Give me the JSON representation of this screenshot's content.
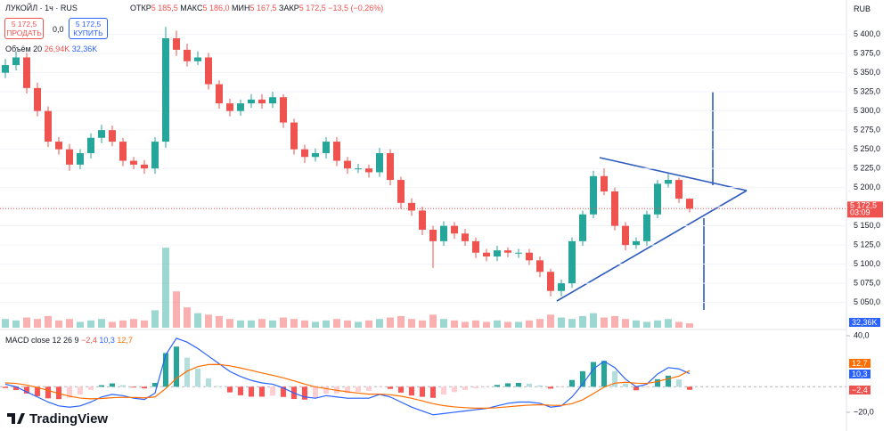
{
  "header": {
    "symbol": "ЛУКОЙЛ · 1ч · RUS",
    "open_label": "ОТКР",
    "open": "5 185,5",
    "high_label": "МАКС",
    "high": "5 186,0",
    "low_label": "МИН",
    "low": "5 167,5",
    "close_label": "ЗАКР",
    "close": "5 172,5",
    "change": "−13,5 (−0,26%)",
    "sell_price": "5 172,5",
    "sell_label": "ПРОДАТЬ",
    "spread": "0,0",
    "buy_price": "5 172,5",
    "buy_label": "КУПИТЬ",
    "currency": "RUB",
    "logo": "TradingView"
  },
  "chart_data": {
    "type": "candlestick",
    "open": [
      5350,
      5360,
      5370,
      5330,
      5300,
      5260,
      5250,
      5230,
      5245,
      5265,
      5275,
      5260,
      5235,
      5230,
      5225,
      5260,
      5395,
      5380,
      5365,
      5370,
      5335,
      5310,
      5300,
      5310,
      5315,
      5310,
      5318,
      5285,
      5250,
      5240,
      5245,
      5260,
      5235,
      5225,
      5225,
      5220,
      5245,
      5210,
      5180,
      5170,
      5145,
      5130,
      5150,
      5140,
      5130,
      5115,
      5110,
      5118,
      5115,
      5115,
      5105,
      5090,
      5065,
      5075,
      5130,
      5165,
      5215,
      5195,
      5150,
      5125,
      5130,
      5165,
      5205,
      5210,
      5185.5
    ],
    "high": [
      5368,
      5378,
      5376,
      5337,
      5306,
      5266,
      5257,
      5250,
      5271,
      5282,
      5281,
      5265,
      5240,
      5236,
      5266,
      5410,
      5405,
      5388,
      5378,
      5376,
      5340,
      5316,
      5315,
      5322,
      5322,
      5325,
      5322,
      5290,
      5256,
      5251,
      5266,
      5266,
      5240,
      5231,
      5230,
      5252,
      5250,
      5214,
      5186,
      5175,
      5150,
      5156,
      5155,
      5146,
      5135,
      5120,
      5124,
      5122,
      5120,
      5120,
      5110,
      5094,
      5080,
      5135,
      5170,
      5222,
      5225,
      5200,
      5155,
      5135,
      5170,
      5210,
      5218,
      5213,
      5186
    ],
    "low": [
      5343,
      5353,
      5323,
      5293,
      5253,
      5243,
      5222,
      5224,
      5238,
      5258,
      5254,
      5228,
      5224,
      5218,
      5218,
      5252,
      5372,
      5358,
      5360,
      5328,
      5303,
      5293,
      5294,
      5304,
      5303,
      5304,
      5278,
      5243,
      5232,
      5234,
      5238,
      5228,
      5218,
      5219,
      5213,
      5214,
      5203,
      5172,
      5163,
      5138,
      5095,
      5124,
      5133,
      5124,
      5108,
      5104,
      5104,
      5109,
      5108,
      5099,
      5083,
      5058,
      5058,
      5069,
      5124,
      5160,
      5190,
      5144,
      5118,
      5120,
      5124,
      5160,
      5200,
      5180,
      5167.5
    ],
    "close": [
      5360,
      5370,
      5330,
      5300,
      5260,
      5250,
      5230,
      5245,
      5265,
      5275,
      5260,
      5235,
      5230,
      5225,
      5260,
      5395,
      5380,
      5365,
      5370,
      5335,
      5310,
      5300,
      5310,
      5315,
      5310,
      5318,
      5285,
      5250,
      5240,
      5245,
      5260,
      5235,
      5225,
      5225,
      5220,
      5245,
      5210,
      5180,
      5170,
      5145,
      5130,
      5150,
      5140,
      5130,
      5115,
      5110,
      5118,
      5115,
      5115,
      5105,
      5090,
      5065,
      5075,
      5130,
      5165,
      5215,
      5195,
      5150,
      5125,
      5130,
      5165,
      5205,
      5210,
      5185.5,
      5172.5
    ],
    "up_color": "#26a69a",
    "down_color": "#ef5350",
    "ylim": [
      5017,
      5445
    ],
    "yticks": [
      {
        "value": 5050,
        "label": "5 050,0"
      },
      {
        "value": 5075,
        "label": "5 075,0"
      },
      {
        "value": 5100,
        "label": "5 100,0"
      },
      {
        "value": 5125,
        "label": "5 125,0"
      },
      {
        "value": 5150,
        "label": "5 150,0"
      },
      {
        "value": 5175,
        "label": "5 175,0"
      },
      {
        "value": 5200,
        "label": "5 200,0"
      },
      {
        "value": 5225,
        "label": "5 225,0"
      },
      {
        "value": 5250,
        "label": "5 250,0"
      },
      {
        "value": 5275,
        "label": "5 275,0"
      },
      {
        "value": 5300,
        "label": "5 300,0"
      },
      {
        "value": 5325,
        "label": "5 325,0"
      },
      {
        "value": 5350,
        "label": "5 350,0"
      },
      {
        "value": 5375,
        "label": "5 375,0"
      },
      {
        "value": 5400,
        "label": "5 400,0"
      }
    ],
    "last_price": {
      "value": 5172.5,
      "label": "5 172,5"
    },
    "countdown": "03:09",
    "volume_title": "Объём 20",
    "volume_value": "26,94K",
    "volume_ma": "32,36K",
    "volume_badge": "32,36K",
    "volume": [
      6,
      5,
      7,
      6,
      8,
      5,
      6,
      4,
      5,
      6,
      4,
      5,
      6,
      5,
      12,
      55,
      25,
      14,
      10,
      9,
      8,
      6,
      5,
      5,
      6,
      5,
      7,
      6,
      5,
      4,
      5,
      6,
      5,
      4,
      5,
      6,
      7,
      8,
      6,
      5,
      9,
      6,
      5,
      4,
      5,
      4,
      5,
      4,
      4,
      5,
      6,
      9,
      7,
      6,
      8,
      10,
      7,
      8,
      6,
      5,
      4,
      5,
      6,
      4,
      3
    ],
    "volume_ylim": [
      0,
      60
    ],
    "macd_title": "MACD close 12 26 9",
    "macd_hist_label": "−2,4",
    "macd_label": "10,3",
    "signal_label": "12,7",
    "macd": [
      2,
      0,
      -4,
      -8,
      -12,
      -15,
      -16,
      -15,
      -12,
      -8,
      -6,
      -7,
      -9,
      -10,
      -5,
      25,
      38,
      35,
      30,
      24,
      18,
      12,
      8,
      5,
      3,
      2,
      -1,
      -5,
      -8,
      -9,
      -7,
      -8,
      -9,
      -9,
      -9,
      -6,
      -8,
      -12,
      -16,
      -19,
      -22,
      -21,
      -20,
      -19,
      -18,
      -17,
      -15,
      -13,
      -12,
      -12,
      -13,
      -16,
      -15,
      -8,
      2,
      14,
      20,
      15,
      6,
      0,
      2,
      10,
      15,
      14,
      10.3
    ],
    "signal": [
      3,
      2.6,
      1.3,
      -0.6,
      -2.9,
      -5.3,
      -7.4,
      -8.9,
      -9.5,
      -9.2,
      -8.6,
      -8.3,
      -8.4,
      -8.7,
      -8,
      -1.4,
      6.5,
      12.2,
      15.8,
      17.4,
      17.5,
      16.4,
      14.7,
      12.8,
      10.8,
      9,
      7,
      4.6,
      2.1,
      -0.1,
      -1.5,
      -2.8,
      -4,
      -5,
      -5.8,
      -5.8,
      -6.3,
      -7.4,
      -9.1,
      -11.1,
      -13.3,
      -14.8,
      -15.8,
      -16.4,
      -16.8,
      -16.8,
      -16.4,
      -15.7,
      -15,
      -14.4,
      -14.1,
      -14.5,
      -14.6,
      -13.3,
      -10.2,
      -5.4,
      -0.3,
      2.8,
      3.5,
      2.8,
      2.6,
      4.1,
      6.3,
      8.3,
      12.7
    ],
    "histogram": [
      -1,
      -2.6,
      -5.3,
      -7.4,
      -9.1,
      -9.7,
      -8.6,
      -6.1,
      -2.5,
      1.2,
      2.6,
      1.3,
      -0.6,
      -1.3,
      3,
      26.4,
      31.5,
      22.8,
      14.2,
      6.6,
      0.5,
      -4.4,
      -6.7,
      -7.8,
      -7.8,
      -7,
      -8,
      -9.6,
      -10.1,
      -8.9,
      -5.5,
      -5.2,
      -5,
      -4,
      -3.2,
      -0.2,
      -1.7,
      -4.6,
      -6.9,
      -7.9,
      -8.7,
      -6.2,
      -4.2,
      -2.6,
      -1.2,
      -0.2,
      1.4,
      2.7,
      3,
      2.4,
      1.1,
      -1.5,
      -0.4,
      5.3,
      12.2,
      19.4,
      20.3,
      12.2,
      2.5,
      -2.8,
      -0.6,
      5.9,
      8.7,
      5.7,
      -2.4
    ],
    "macd_color": "#2962ff",
    "signal_color": "#ff6d00",
    "macd_ylim": [
      -34.7,
      43.5
    ],
    "macd_yticks": [
      {
        "value": 40,
        "label": "40,0"
      },
      {
        "value": -20,
        "label": "−20,0"
      }
    ]
  }
}
